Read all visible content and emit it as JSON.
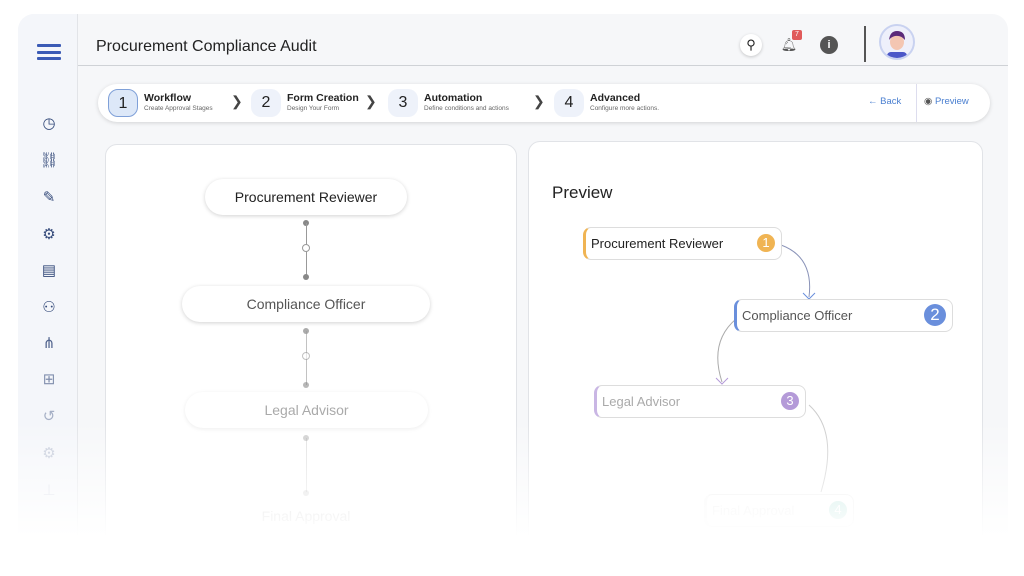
{
  "header": {
    "title": "Procurement Compliance Audit",
    "notification_count": "7"
  },
  "sidebar": {
    "icons": [
      "dashboard-icon",
      "workflow-icon",
      "form-edit-icon",
      "automation-icon",
      "document-list-icon",
      "user-settings-icon",
      "network-icon",
      "hierarchy-icon",
      "history-icon",
      "integration-icon",
      "org-chart-icon"
    ]
  },
  "stepper": {
    "steps": [
      {
        "num": "1",
        "label": "Workflow",
        "sub": "Create Approval Stages"
      },
      {
        "num": "2",
        "label": "Form Creation",
        "sub": "Design Your Form"
      },
      {
        "num": "3",
        "label": "Automation",
        "sub": "Define conditions and actions"
      },
      {
        "num": "4",
        "label": "Advanced",
        "sub": "Configure more actions."
      }
    ],
    "back": "Back",
    "preview": "Preview"
  },
  "workflow": {
    "nodes": [
      "Procurement Reviewer",
      "Compliance Officer",
      "Legal Advisor",
      "Final Approval"
    ]
  },
  "preview": {
    "title": "Preview",
    "nodes": [
      {
        "label": "Procurement Reviewer",
        "num": "1",
        "color": "#f0b453"
      },
      {
        "label": "Compliance Officer",
        "num": "2",
        "color": "#6a8fdc"
      },
      {
        "label": "Legal Advisor",
        "num": "3",
        "color": "#b49ad8"
      },
      {
        "label": "Final Approval",
        "num": "4",
        "color": "#7fcfc0"
      }
    ]
  }
}
